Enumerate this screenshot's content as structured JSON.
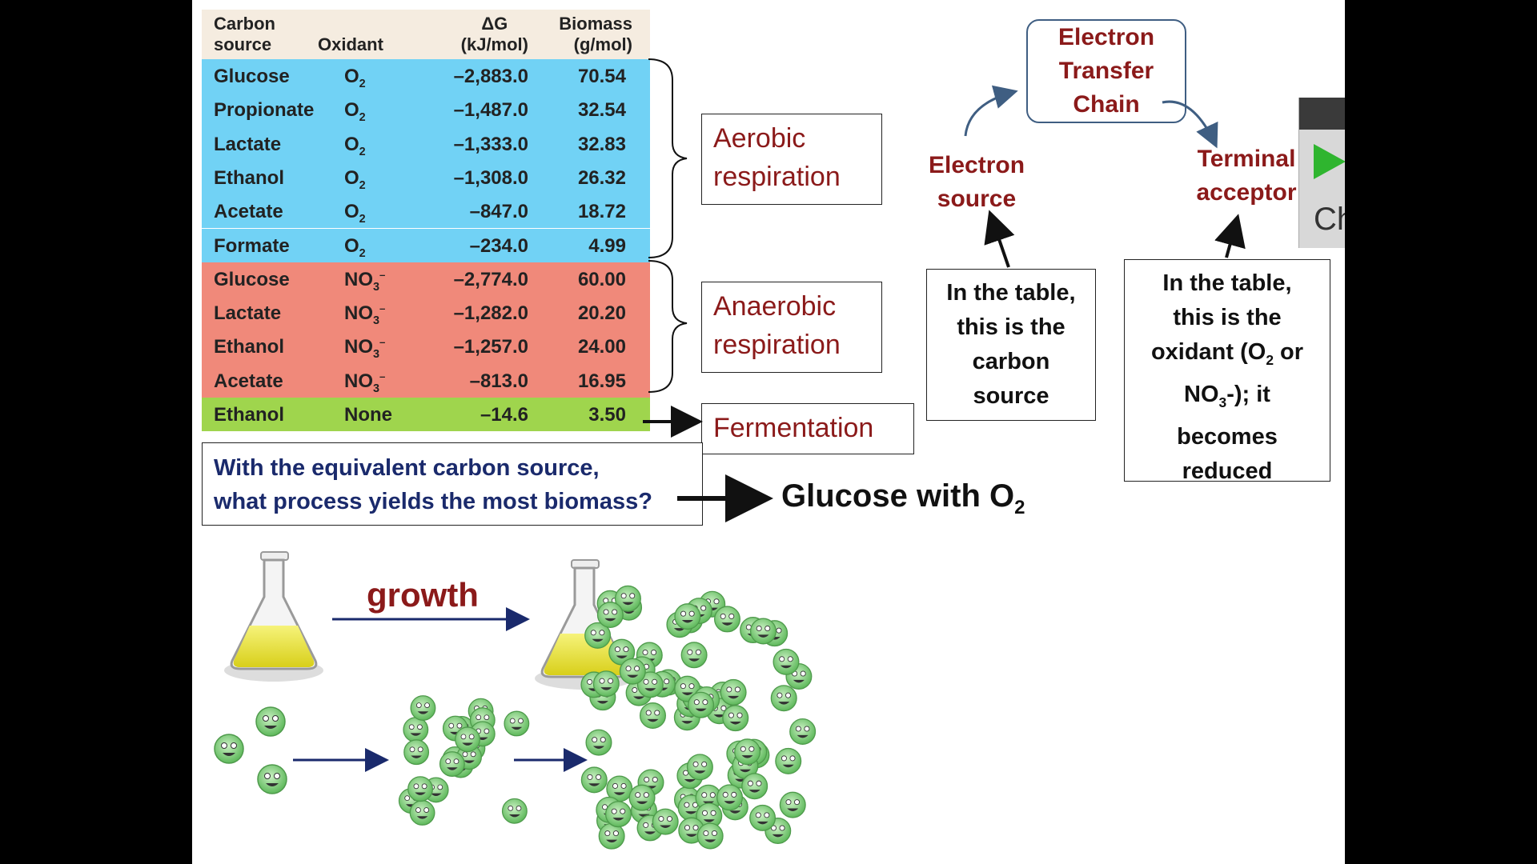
{
  "table": {
    "headers": {
      "carbon_source": [
        "Carbon",
        "source"
      ],
      "oxidant": "Oxidant",
      "dg": [
        "ΔG",
        "(kJ/mol)"
      ],
      "biomass": [
        "Biomass",
        "(g/mol)"
      ]
    },
    "rows": [
      {
        "source": "Glucose",
        "ox": "O",
        "ox_sub": "2",
        "ox_sup": "",
        "dg": "–2,883.0",
        "bio": "70.54",
        "group": "aerobic"
      },
      {
        "source": "Propionate",
        "ox": "O",
        "ox_sub": "2",
        "ox_sup": "",
        "dg": "–1,487.0",
        "bio": "32.54",
        "group": "aerobic"
      },
      {
        "source": "Lactate",
        "ox": "O",
        "ox_sub": "2",
        "ox_sup": "",
        "dg": "–1,333.0",
        "bio": "32.83",
        "group": "aerobic"
      },
      {
        "source": "Ethanol",
        "ox": "O",
        "ox_sub": "2",
        "ox_sup": "",
        "dg": "–1,308.0",
        "bio": "26.32",
        "group": "aerobic"
      },
      {
        "source": "Acetate",
        "ox": "O",
        "ox_sub": "2",
        "ox_sup": "",
        "dg": "–847.0",
        "bio": "18.72",
        "group": "aerobic"
      },
      {
        "source": "Formate",
        "ox": "O",
        "ox_sub": "2",
        "ox_sup": "",
        "dg": "–234.0",
        "bio": "4.99",
        "group": "aerobic"
      },
      {
        "source": "Glucose",
        "ox": "NO",
        "ox_sub": "3",
        "ox_sup": "–",
        "dg": "–2,774.0",
        "bio": "60.00",
        "group": "anaerobic"
      },
      {
        "source": "Lactate",
        "ox": "NO",
        "ox_sub": "3",
        "ox_sup": "–",
        "dg": "–1,282.0",
        "bio": "20.20",
        "group": "anaerobic"
      },
      {
        "source": "Ethanol",
        "ox": "NO",
        "ox_sub": "3",
        "ox_sup": "–",
        "dg": "–1,257.0",
        "bio": "24.00",
        "group": "anaerobic"
      },
      {
        "source": "Acetate",
        "ox": "NO",
        "ox_sub": "3",
        "ox_sup": "–",
        "dg": "–813.0",
        "bio": "16.95",
        "group": "anaerobic"
      },
      {
        "source": "Ethanol",
        "ox": "None",
        "ox_sub": "",
        "ox_sup": "",
        "dg": "–14.6",
        "bio": "3.50",
        "group": "fermentation"
      }
    ]
  },
  "processes": {
    "aerobic": [
      "Aerobic",
      "respiration"
    ],
    "anaerobic": [
      "Anaerobic",
      "respiration"
    ],
    "fermentation": "Fermentation"
  },
  "question": {
    "text": [
      "With the equivalent carbon source,",
      "what process yields the most biomass?"
    ],
    "answer_main": "Glucose with O",
    "answer_sub": "2"
  },
  "etc": {
    "title": [
      "Electron",
      "Transfer",
      "Chain"
    ],
    "electron_source": [
      "Electron",
      "source"
    ],
    "terminal_acceptor": [
      "Terminal",
      "acceptor"
    ]
  },
  "info_boxes": {
    "carbon": [
      "In the table,",
      "this is the",
      "carbon",
      "source"
    ],
    "oxidant": {
      "line1": "In the table,",
      "line2": "this is the",
      "line3_a": "oxidant (O",
      "line3_sub": "2",
      "line3_b": " or",
      "line4_a": "NO",
      "line4_sub": "3",
      "line4_b": "-); it",
      "line5": "becomes",
      "line6": "reduced"
    }
  },
  "growth_label": "growth",
  "edge_panel_label": "Ch",
  "colors": {
    "aerobic": "#71d2f5",
    "anaerobic": "#f0897a",
    "fermentation": "#9fd54d",
    "header": "#f5ece0",
    "process_text": "#8b1a1a",
    "question_text": "#1a2a6c",
    "arrow_blue": "#1a2a6c"
  }
}
